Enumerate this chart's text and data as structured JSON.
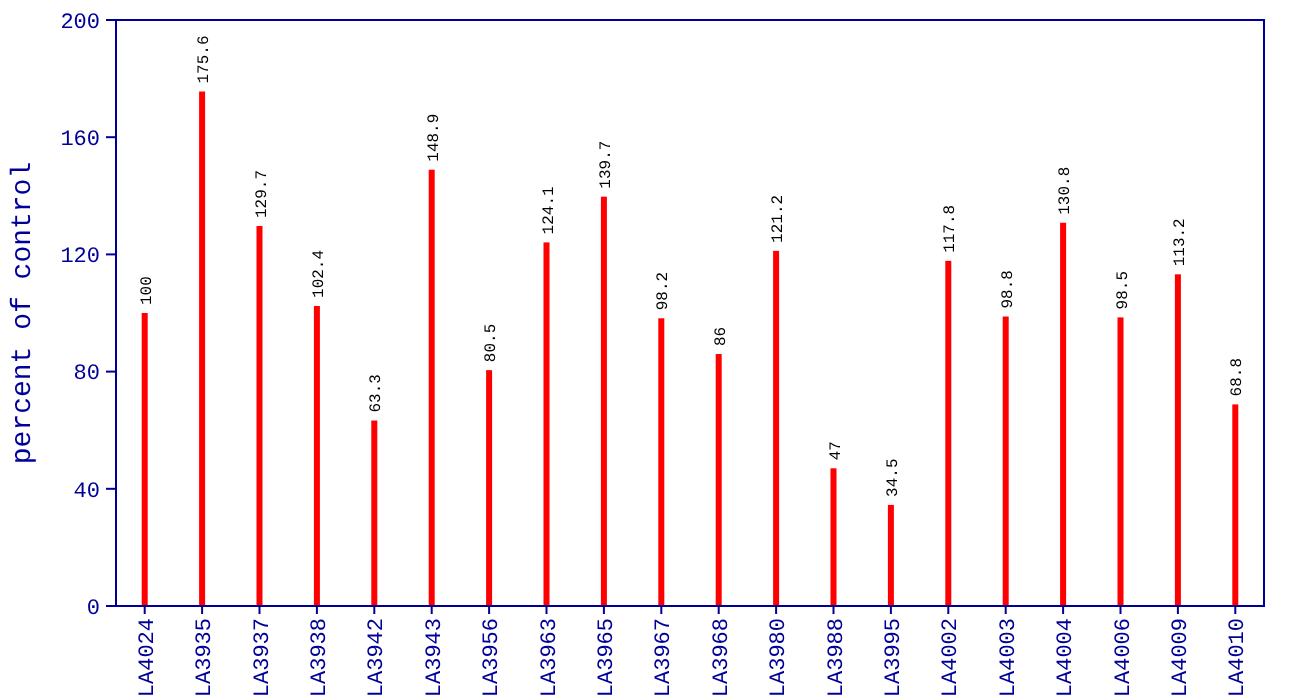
{
  "chart_data": {
    "type": "bar",
    "ylabel": "percent of control",
    "categories": [
      "LA4024",
      "LA3935",
      "LA3937",
      "LA3938",
      "LA3942",
      "LA3943",
      "LA3956",
      "LA3963",
      "LA3965",
      "LA3967",
      "LA3968",
      "LA3980",
      "LA3988",
      "LA3995",
      "LA4002",
      "LA4003",
      "LA4004",
      "LA4006",
      "LA4009",
      "LA4010"
    ],
    "values": [
      100,
      175.6,
      129.7,
      102.4,
      63.3,
      148.9,
      80.5,
      124.1,
      139.7,
      98.2,
      86,
      121.2,
      47,
      34.5,
      117.8,
      98.8,
      130.8,
      98.5,
      113.2,
      68.8
    ],
    "color": "#ff0000",
    "ylim": [
      0,
      200
    ],
    "yticks": [
      0,
      40,
      80,
      120,
      160,
      200
    ],
    "data_labels": true
  }
}
